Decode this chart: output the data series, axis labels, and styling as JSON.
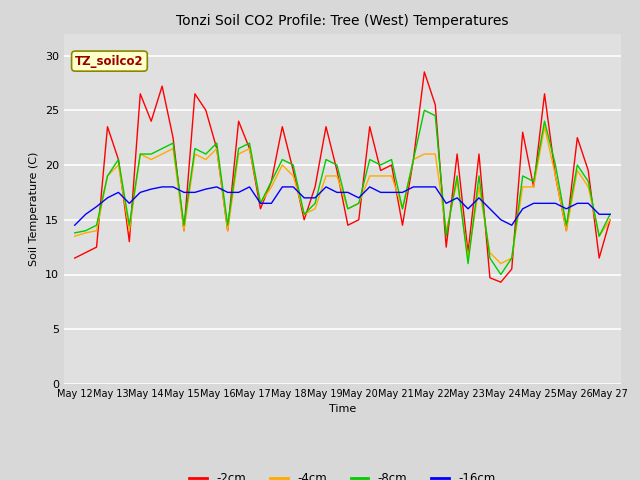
{
  "title": "Tonzi Soil CO2 Profile: Tree (West) Temperatures",
  "xlabel": "Time",
  "ylabel": "Soil Temperature (C)",
  "ylim": [
    0,
    32
  ],
  "yticks": [
    0,
    5,
    10,
    15,
    20,
    25,
    30
  ],
  "xtick_labels": [
    "May 12",
    "May 13",
    "May 14",
    "May 15",
    "May 16",
    "May 17",
    "May 18",
    "May 19",
    "May 20",
    "May 21",
    "May 22",
    "May 23",
    "May 24",
    "May 25",
    "May 26",
    "May 27"
  ],
  "fig_bg_color": "#d8d8d8",
  "plot_bg_color": "#e0e0e0",
  "annotation_box_color": "#ffffcc",
  "annotation_text": "TZ_soilco2",
  "annotation_text_color": "#990000",
  "legend_labels": [
    "-2cm",
    "-4cm",
    "-8cm",
    "-16cm"
  ],
  "legend_colors": [
    "#ff0000",
    "#ffaa00",
    "#00cc00",
    "#0000ff"
  ],
  "line_colors": [
    "#ff0000",
    "#ffaa00",
    "#00cc00",
    "#0000ff"
  ],
  "series_2cm": [
    11.5,
    12.0,
    12.5,
    23.5,
    20.5,
    13.0,
    26.5,
    24.0,
    27.2,
    22.5,
    14.0,
    26.5,
    25.0,
    21.5,
    14.0,
    24.0,
    21.5,
    16.0,
    18.5,
    23.5,
    19.5,
    15.0,
    18.0,
    23.5,
    19.5,
    14.5,
    15.0,
    23.5,
    19.5,
    20.0,
    14.5,
    20.5,
    28.5,
    25.5,
    12.5,
    21.0,
    12.0,
    21.0,
    9.7,
    9.3,
    10.5,
    23.0,
    18.0,
    26.5,
    19.0,
    14.0,
    22.5,
    19.5,
    11.5,
    15.0
  ],
  "series_4cm": [
    13.5,
    13.8,
    14.0,
    19.0,
    20.0,
    14.0,
    21.0,
    20.5,
    21.0,
    21.5,
    14.0,
    21.0,
    20.5,
    21.5,
    14.0,
    21.0,
    21.5,
    16.5,
    18.0,
    20.0,
    19.0,
    15.5,
    16.0,
    19.0,
    19.0,
    16.0,
    16.5,
    19.0,
    19.0,
    19.0,
    16.0,
    20.5,
    21.0,
    21.0,
    14.0,
    18.5,
    11.5,
    18.0,
    12.0,
    11.0,
    11.5,
    18.0,
    18.0,
    23.5,
    19.0,
    14.0,
    19.5,
    18.0,
    13.5,
    15.0
  ],
  "series_8cm": [
    13.8,
    14.0,
    14.5,
    19.0,
    20.5,
    14.5,
    21.0,
    21.0,
    21.5,
    22.0,
    14.5,
    21.5,
    21.0,
    22.0,
    14.5,
    21.5,
    22.0,
    16.5,
    18.5,
    20.5,
    20.0,
    15.5,
    16.5,
    20.5,
    20.0,
    16.0,
    16.5,
    20.5,
    20.0,
    20.5,
    16.0,
    20.5,
    25.0,
    24.5,
    13.5,
    19.0,
    11.0,
    19.0,
    11.5,
    10.0,
    11.5,
    19.0,
    18.5,
    24.0,
    20.0,
    14.5,
    20.0,
    18.5,
    13.5,
    15.5
  ],
  "series_16cm": [
    14.5,
    15.5,
    16.2,
    17.0,
    17.5,
    16.5,
    17.5,
    17.8,
    18.0,
    18.0,
    17.5,
    17.5,
    17.8,
    18.0,
    17.5,
    17.5,
    18.0,
    16.5,
    16.5,
    18.0,
    18.0,
    17.0,
    17.0,
    18.0,
    17.5,
    17.5,
    17.0,
    18.0,
    17.5,
    17.5,
    17.5,
    18.0,
    18.0,
    18.0,
    16.5,
    17.0,
    16.0,
    17.0,
    16.0,
    15.0,
    14.5,
    16.0,
    16.5,
    16.5,
    16.5,
    16.0,
    16.5,
    16.5,
    15.5,
    15.5
  ]
}
